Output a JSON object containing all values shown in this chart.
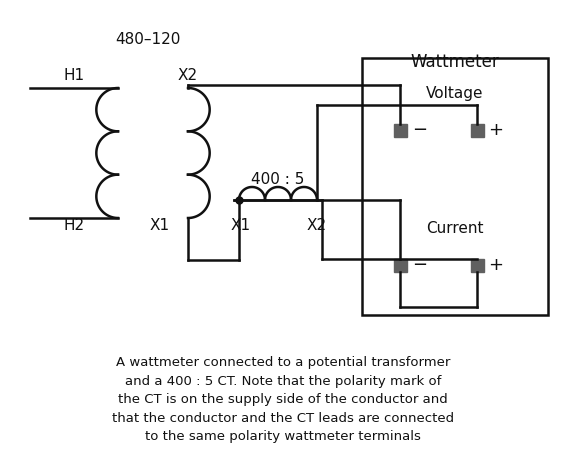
{
  "background_color": "#ffffff",
  "text_color": "#111111",
  "caption": "A wattmeter connected to a potential transformer\nand a 400 : 5 CT. Note that the polarity mark of\nthe CT is on the supply side of the conductor and\nthat the conductor and the CT leads are connected\nto the same polarity wattmeter terminals",
  "label_480_120": "480–120",
  "label_H1": "H1",
  "label_H2": "H2",
  "label_X2_top": "X2",
  "label_X1_bottom_left": "X1",
  "label_X1_bottom_right": "X1",
  "label_X2_bottom": "X2",
  "label_400_5": "400 : 5",
  "label_Wattmeter": "Wattmeter",
  "label_Voltage": "Voltage",
  "label_Current": "Current",
  "label_minus": "−",
  "label_plus": "+"
}
